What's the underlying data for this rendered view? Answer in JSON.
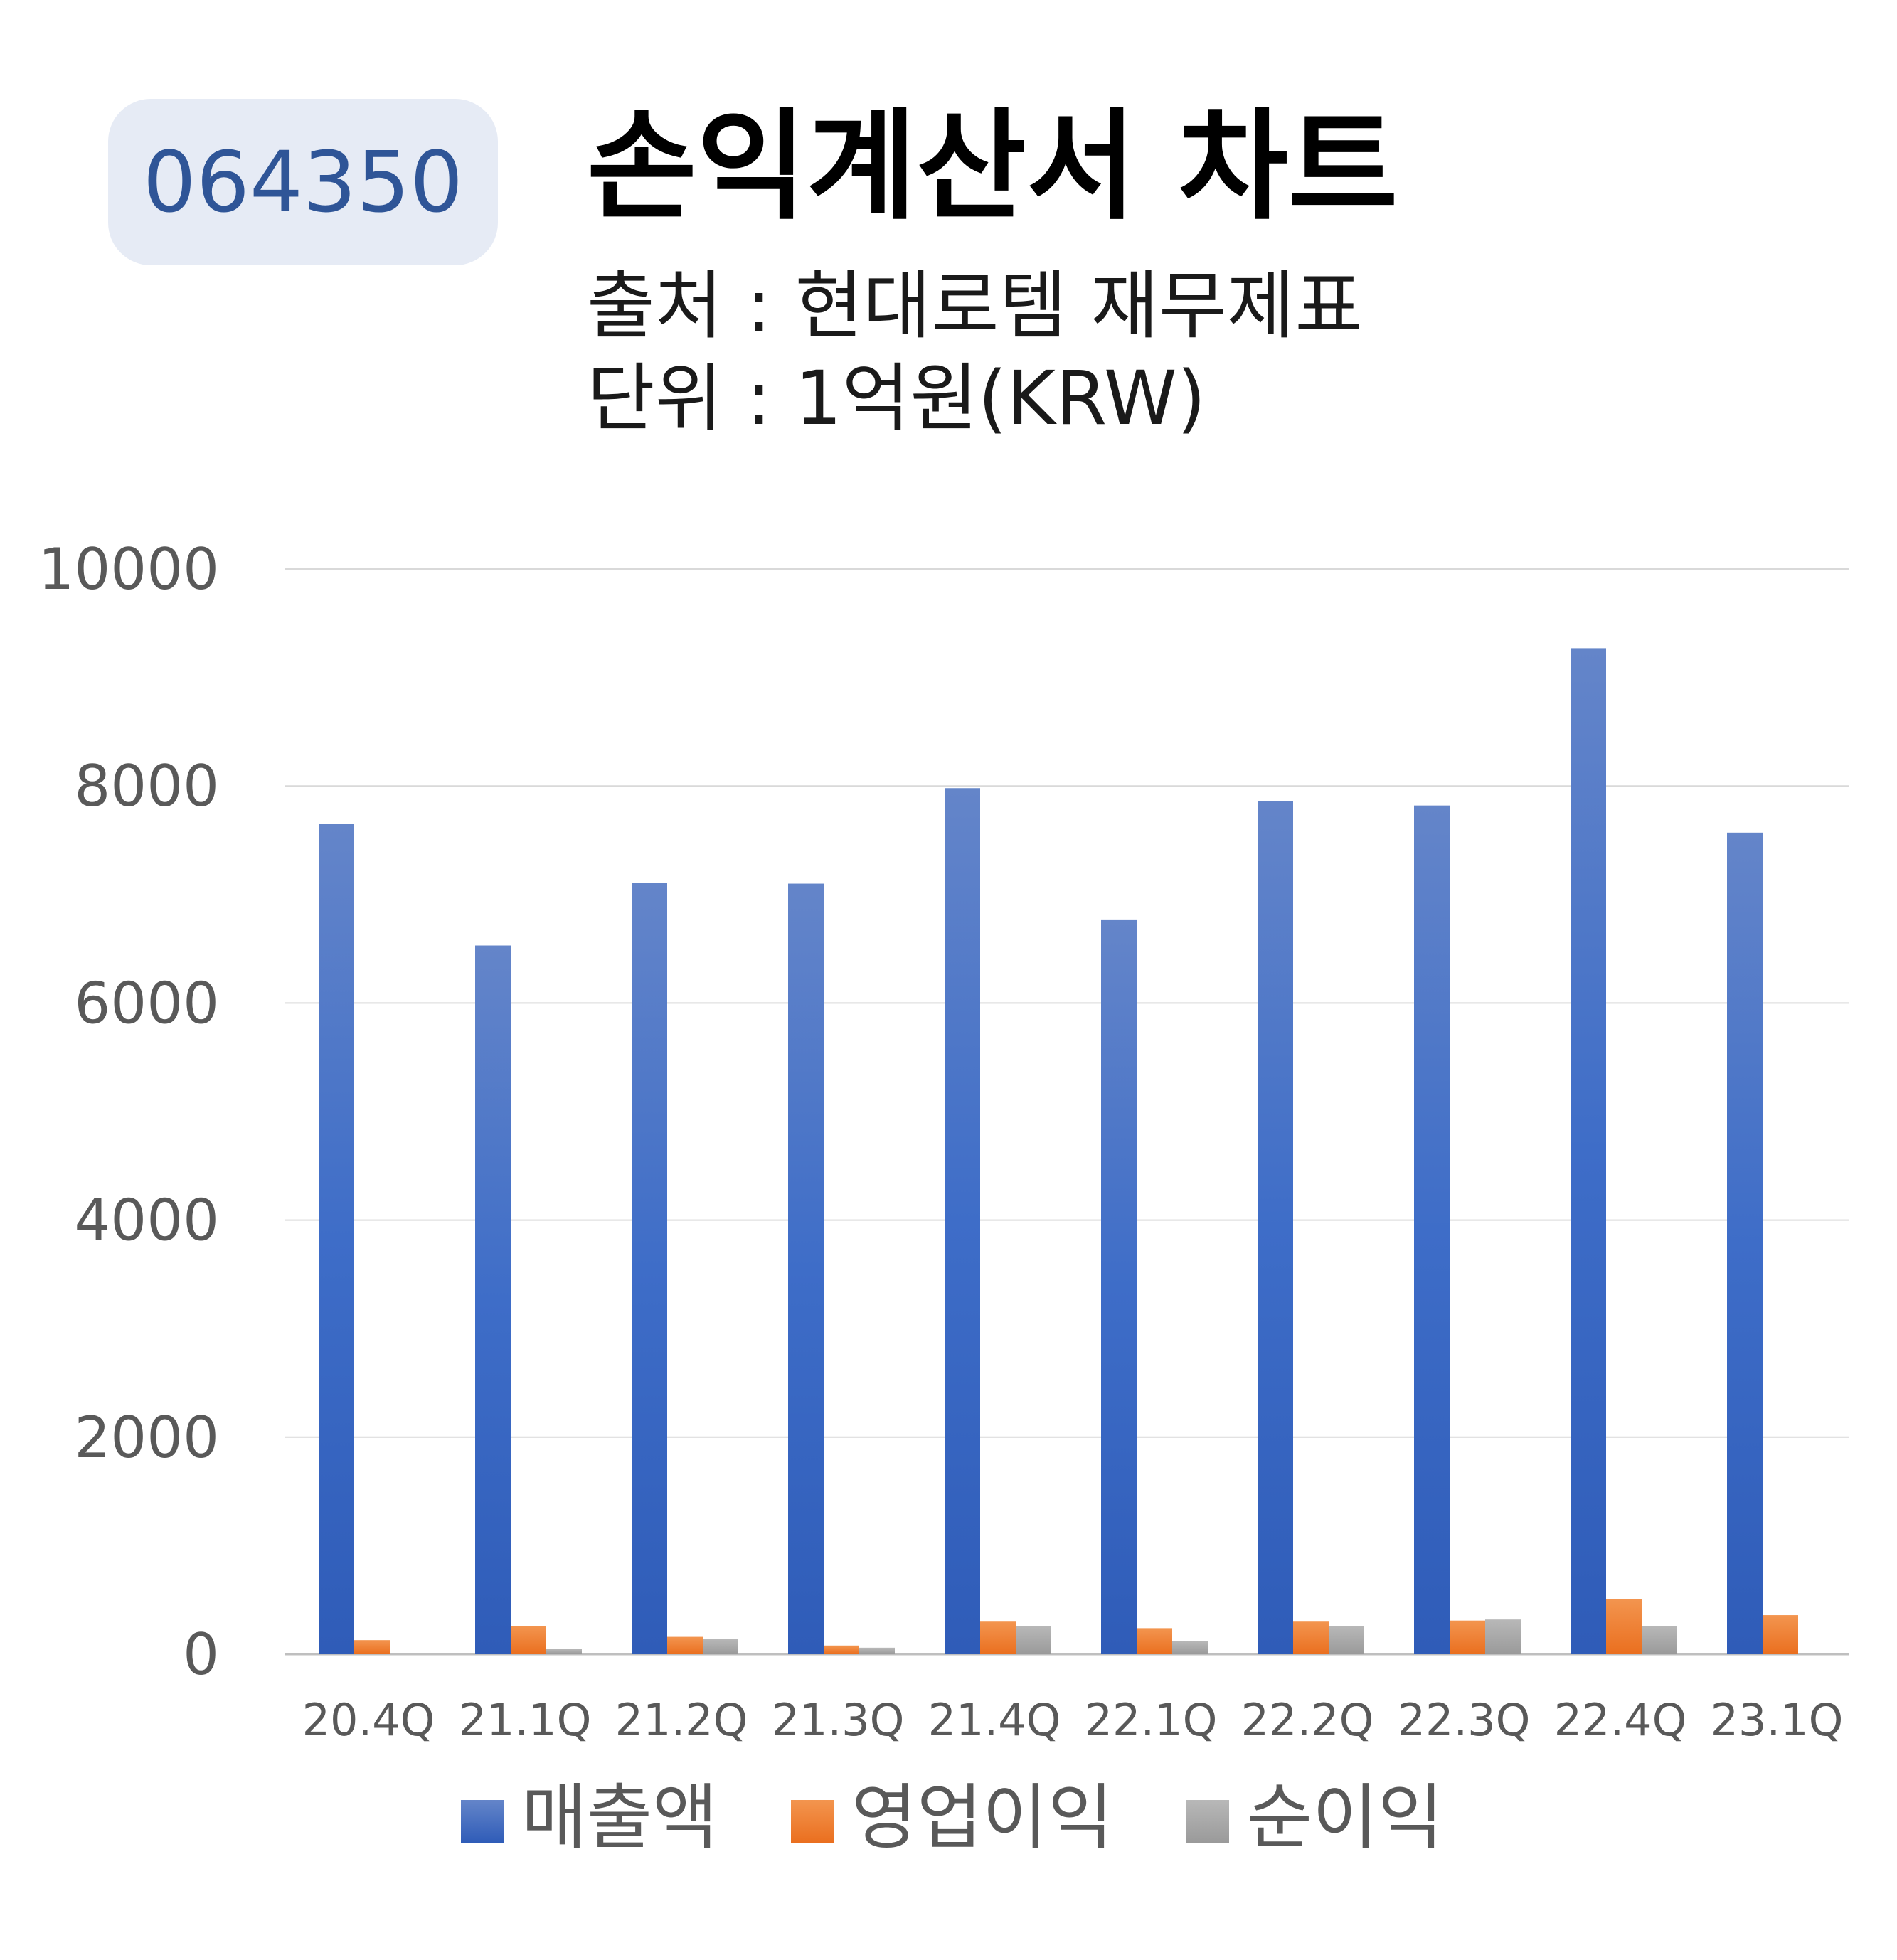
{
  "ticker": "064350",
  "title": "손익계산서 차트",
  "source_line": "출처 : 현대로템 재무제표",
  "unit_line": "단위 : 1억원(KRW)",
  "colors": {
    "badge_bg": "#e6ebf5",
    "badge_text": "#2f5597",
    "revenue": "#4472c4",
    "operating_income": "#ed7d31",
    "net_income": "#a5a5a5",
    "gridline": "#d9d9d9",
    "axis_text": "#595959"
  },
  "chart_data": {
    "type": "bar",
    "categories": [
      "20.4Q",
      "21.1Q",
      "21.2Q",
      "21.3Q",
      "21.4Q",
      "22.1Q",
      "22.2Q",
      "22.3Q",
      "22.4Q",
      "23.1Q"
    ],
    "series": [
      {
        "name": "매출액",
        "color": "#4472c4",
        "values": [
          7650,
          6530,
          7110,
          7100,
          7980,
          6770,
          7860,
          7820,
          9270,
          7570
        ]
      },
      {
        "name": "영업이익",
        "color": "#ed7d31",
        "values": [
          130,
          260,
          160,
          80,
          300,
          240,
          300,
          310,
          510,
          360
        ]
      },
      {
        "name": "순이익",
        "color": "#a5a5a5",
        "values": [
          0,
          50,
          140,
          60,
          260,
          120,
          260,
          320,
          260,
          0
        ]
      }
    ],
    "ylim": [
      0,
      10000
    ],
    "yticks": [
      "0",
      "2000",
      "4000",
      "6000",
      "8000",
      "10000"
    ],
    "grid": true,
    "legend_position": "bottom"
  }
}
